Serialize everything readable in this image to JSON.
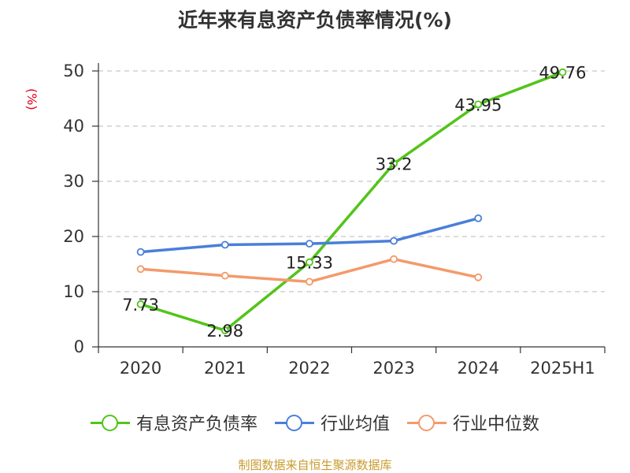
{
  "title": "近年来有息资产负债率情况(%)",
  "source_note": "制图数据来自恒生聚源数据库",
  "chart_data": {
    "type": "line",
    "categories": [
      "2020",
      "2021",
      "2022",
      "2023",
      "2024",
      "2025H1"
    ],
    "ylabel": "(%)",
    "ylim": [
      0,
      50
    ],
    "yticks": [
      0,
      10,
      20,
      30,
      40,
      50
    ],
    "grid": true,
    "legend_position": "bottom",
    "series": [
      {
        "name": "有息资产负债率",
        "color": "#52c41a",
        "values": [
          7.73,
          2.98,
          15.33,
          33.2,
          43.95,
          49.76
        ],
        "data_labels": [
          "7.73",
          "2.98",
          "15.33",
          "33.2",
          "43.95",
          "49.76"
        ]
      },
      {
        "name": "行业均值",
        "color": "#4a7fd9",
        "values": [
          17.2,
          18.5,
          18.7,
          19.2,
          23.3,
          null
        ]
      },
      {
        "name": "行业中位数",
        "color": "#f39a6b",
        "values": [
          14.1,
          12.9,
          11.8,
          15.9,
          12.6,
          null
        ]
      }
    ]
  }
}
